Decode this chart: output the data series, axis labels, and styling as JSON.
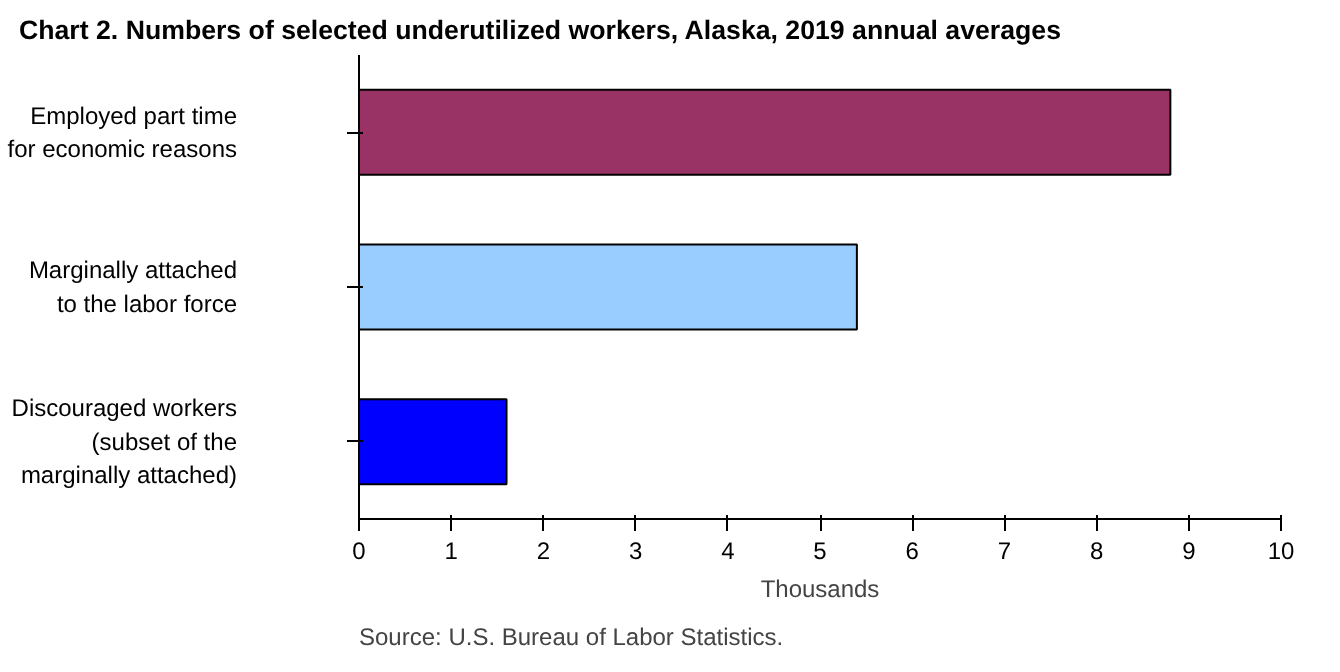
{
  "chart_data": {
    "type": "bar",
    "orientation": "horizontal",
    "title": "Chart 2. Numbers of selected underutilized workers, Alaska, 2019 annual averages",
    "categories": [
      "Employed part time\nfor economic reasons",
      "Marginally attached\nto the labor force",
      "Discouraged workers\n(subset of the\nmarginally attached)"
    ],
    "values": [
      8.8,
      5.4,
      1.6
    ],
    "colors": [
      "#993366",
      "#99ccff",
      "#0000ff"
    ],
    "xlabel": "Thousands",
    "xlim": [
      0,
      10
    ],
    "xticks": [
      0,
      1,
      2,
      3,
      4,
      5,
      6,
      7,
      8,
      9,
      10
    ],
    "grid": false,
    "annotations": [
      "Source: U.S. Bureau of Labor Statistics."
    ]
  }
}
